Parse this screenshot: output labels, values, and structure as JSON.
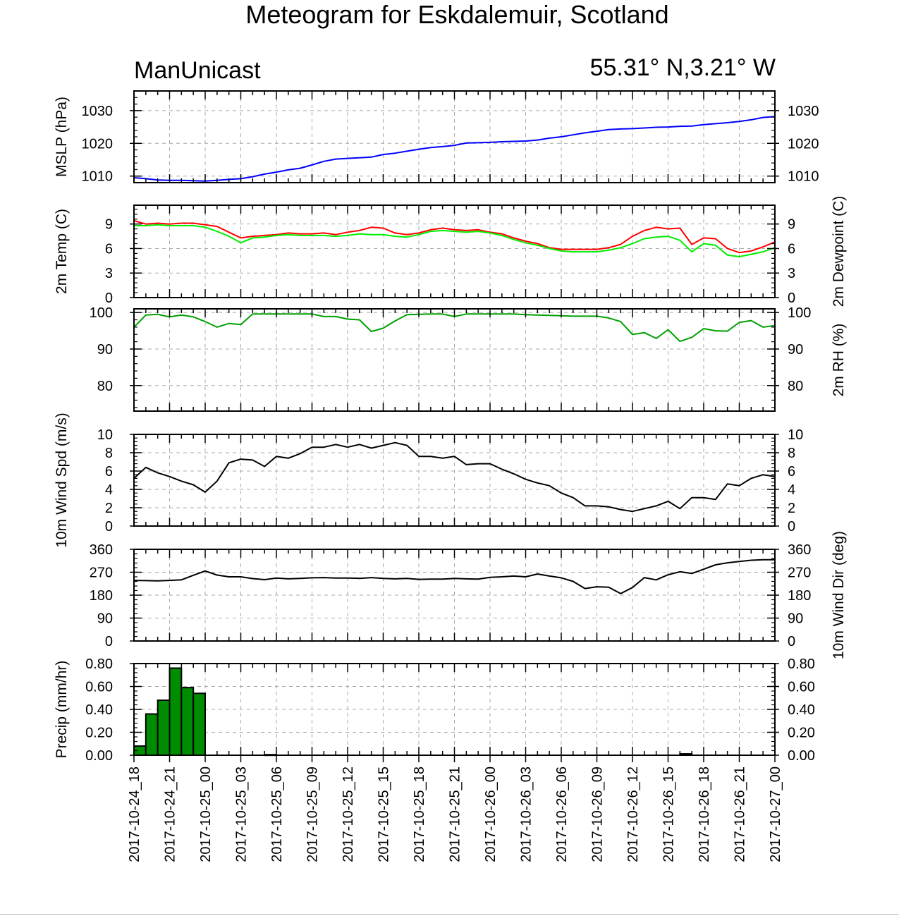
{
  "title": "Meteogram for Eskdalemuir, Scotland",
  "model": "ManUnicast",
  "location": "55.31° N,3.21° W",
  "colors": {
    "mslp": "#0000ff",
    "temp": "#ff0000",
    "dewpoint": "#00ee00",
    "rh": "#00a000",
    "wind": "#000000",
    "precip_fill": "#008c00",
    "grid": "#aaaaaa"
  },
  "chart_data": {
    "type": "line",
    "x_axis": {
      "range": [
        -6,
        48
      ],
      "tick_labels": [
        "2017-10-24_18",
        "2017-10-24_21",
        "2017-10-25_00",
        "2017-10-25_03",
        "2017-10-25_06",
        "2017-10-25_09",
        "2017-10-25_12",
        "2017-10-25_15",
        "2017-10-25_18",
        "2017-10-25_21",
        "2017-10-26_00",
        "2017-10-26_03",
        "2017-10-26_06",
        "2017-10-26_09",
        "2017-10-26_12",
        "2017-10-26_15",
        "2017-10-26_18",
        "2017-10-26_21",
        "2017-10-27_00"
      ],
      "tick_hours": [
        -6,
        -3,
        0,
        3,
        6,
        9,
        12,
        15,
        18,
        21,
        24,
        27,
        30,
        33,
        36,
        39,
        42,
        45,
        48
      ]
    },
    "panels": [
      {
        "id": "mslp",
        "ylabel": "MSLP (hPa)",
        "ylabel_right": "",
        "ylim": [
          1008,
          1036
        ],
        "ticks": [
          1010,
          1020,
          1030
        ],
        "tick_labels": [
          "1010",
          "1020",
          "1030"
        ],
        "series": [
          {
            "color_key": "mslp",
            "x": [
              -6,
              -5,
              -4,
              -3,
              -2,
              -1,
              0,
              1,
              2,
              3,
              4,
              5,
              6,
              7,
              8,
              9,
              10,
              11,
              12,
              13,
              14,
              15,
              16,
              17,
              18,
              19,
              20,
              21,
              22,
              23,
              24,
              25,
              26,
              27,
              28,
              29,
              30,
              31,
              32,
              33,
              34,
              35,
              36,
              37,
              38,
              39,
              40,
              41,
              42,
              43,
              44,
              45,
              46,
              47,
              48
            ],
            "y": [
              1009.5,
              1009.2,
              1008.8,
              1008.7,
              1008.7,
              1008.6,
              1008.5,
              1008.7,
              1009.0,
              1009.2,
              1009.8,
              1010.6,
              1011.2,
              1011.9,
              1012.4,
              1013.4,
              1014.5,
              1015.2,
              1015.4,
              1015.6,
              1015.8,
              1016.6,
              1017.0,
              1017.6,
              1018.2,
              1018.7,
              1019.0,
              1019.4,
              1020.1,
              1020.2,
              1020.3,
              1020.5,
              1020.6,
              1020.7,
              1021.0,
              1021.6,
              1022.0,
              1022.6,
              1023.2,
              1023.7,
              1024.2,
              1024.4,
              1024.5,
              1024.7,
              1024.9,
              1025.0,
              1025.2,
              1025.3,
              1025.7,
              1026.0,
              1026.3,
              1026.7,
              1027.2,
              1027.9,
              1028.2
            ]
          }
        ]
      },
      {
        "id": "temp",
        "ylabel": "2m Temp (C)",
        "ylabel_right": "2m Dewpoint (C)",
        "ylim": [
          0,
          11.3
        ],
        "ticks": [
          0,
          3,
          6,
          9
        ],
        "tick_labels": [
          "0",
          "3",
          "6",
          "9"
        ],
        "series": [
          {
            "color_key": "temp",
            "x": [
              -6,
              -5,
              -4,
              -3,
              -2,
              -1,
              0,
              1,
              2,
              3,
              4,
              5,
              6,
              7,
              8,
              9,
              10,
              11,
              12,
              13,
              14,
              15,
              16,
              17,
              18,
              19,
              20,
              21,
              22,
              23,
              24,
              25,
              26,
              27,
              28,
              29,
              30,
              31,
              32,
              33,
              34,
              35,
              36,
              37,
              38,
              39,
              40,
              41,
              42,
              43,
              44,
              45,
              46,
              47,
              48
            ],
            "y": [
              9.4,
              9.0,
              9.1,
              9.0,
              9.1,
              9.1,
              8.9,
              8.7,
              8.0,
              7.3,
              7.5,
              7.6,
              7.7,
              7.9,
              7.8,
              7.8,
              7.9,
              7.7,
              8.0,
              8.2,
              8.6,
              8.5,
              7.9,
              7.7,
              7.9,
              8.3,
              8.5,
              8.3,
              8.2,
              8.3,
              8.0,
              7.8,
              7.3,
              6.9,
              6.6,
              6.1,
              5.9,
              5.9,
              5.9,
              5.9,
              6.1,
              6.5,
              7.5,
              8.2,
              8.6,
              8.4,
              8.5,
              6.5,
              7.3,
              7.2,
              6.0,
              5.5,
              5.7,
              6.2,
              6.8
            ]
          },
          {
            "color_key": "dewpoint",
            "x": [
              -6,
              -5,
              -4,
              -3,
              -2,
              -1,
              0,
              1,
              2,
              3,
              4,
              5,
              6,
              7,
              8,
              9,
              10,
              11,
              12,
              13,
              14,
              15,
              16,
              17,
              18,
              19,
              20,
              21,
              22,
              23,
              24,
              25,
              26,
              27,
              28,
              29,
              30,
              31,
              32,
              33,
              34,
              35,
              36,
              37,
              38,
              39,
              40,
              41,
              42,
              43,
              44,
              45,
              46,
              47,
              48
            ],
            "y": [
              8.8,
              8.8,
              8.9,
              8.8,
              8.8,
              8.8,
              8.6,
              8.1,
              7.5,
              6.7,
              7.3,
              7.4,
              7.6,
              7.7,
              7.6,
              7.6,
              7.6,
              7.5,
              7.6,
              7.8,
              7.7,
              7.7,
              7.5,
              7.4,
              7.7,
              8.1,
              8.2,
              8.1,
              8.0,
              8.1,
              7.9,
              7.6,
              7.1,
              6.7,
              6.4,
              6.0,
              5.7,
              5.6,
              5.6,
              5.6,
              5.8,
              6.1,
              6.6,
              7.2,
              7.4,
              7.5,
              7.0,
              5.6,
              6.6,
              6.4,
              5.2,
              5.0,
              5.3,
              5.6,
              6.1
            ]
          }
        ]
      },
      {
        "id": "rh",
        "ylabel": "",
        "ylabel_right": "2m RH (%)",
        "ylim": [
          73,
          101
        ],
        "ticks": [
          80,
          90,
          100
        ],
        "tick_labels": [
          "80",
          "90",
          "100"
        ],
        "series": [
          {
            "color_key": "rh",
            "x": [
              -6,
              -5,
              -4,
              -3,
              -2,
              -1,
              0,
              1,
              2,
              3,
              4,
              5,
              6,
              7,
              8,
              9,
              10,
              11,
              12,
              13,
              14,
              15,
              16,
              17,
              18,
              19,
              20,
              21,
              22,
              23,
              24,
              25,
              26,
              27,
              28,
              29,
              30,
              31,
              32,
              33,
              34,
              35,
              36,
              37,
              38,
              39,
              40,
              41,
              42,
              43,
              44,
              45,
              46,
              47,
              48
            ],
            "y": [
              96,
              99.3,
              99.5,
              98.8,
              99.3,
              98.8,
              97.5,
              96.0,
              97.0,
              96.7,
              99.6,
              99.6,
              99.6,
              99.6,
              99.6,
              99.6,
              98.9,
              98.9,
              98.2,
              98.0,
              94.8,
              95.7,
              97.7,
              99.4,
              99.5,
              99.6,
              99.6,
              98.9,
              99.6,
              99.6,
              99.6,
              99.6,
              99.6,
              99.4,
              99.3,
              99.2,
              99.1,
              99.0,
              99.0,
              99.0,
              98.5,
              97.5,
              94.0,
              94.5,
              92.9,
              95.3,
              92.1,
              93.2,
              95.6,
              95.0,
              94.9,
              97.3,
              97.8,
              96.0,
              96.4
            ]
          }
        ]
      },
      {
        "id": "wind_spd",
        "ylabel": "10m Wind Spd (m/s)",
        "ylabel_right": "",
        "ylim": [
          0,
          10
        ],
        "ticks": [
          0,
          2,
          4,
          6,
          8,
          10
        ],
        "tick_labels": [
          "0",
          "2",
          "4",
          "6",
          "8",
          "10"
        ],
        "series": [
          {
            "color_key": "wind",
            "x": [
              -6,
              -5,
              -4,
              -3,
              -2,
              -1,
              0,
              1,
              2,
              3,
              4,
              5,
              6,
              7,
              8,
              9,
              10,
              11,
              12,
              13,
              14,
              15,
              16,
              17,
              18,
              19,
              20,
              21,
              22,
              23,
              24,
              25,
              26,
              27,
              28,
              29,
              30,
              31,
              32,
              33,
              34,
              35,
              36,
              37,
              38,
              39,
              40,
              41,
              42,
              43,
              44,
              45,
              46,
              47,
              48
            ],
            "y": [
              5.2,
              6.4,
              5.8,
              5.4,
              4.9,
              4.5,
              3.7,
              4.9,
              6.9,
              7.3,
              7.2,
              6.5,
              7.6,
              7.4,
              7.9,
              8.6,
              8.6,
              8.9,
              8.6,
              8.9,
              8.5,
              8.8,
              9.1,
              8.8,
              7.6,
              7.6,
              7.4,
              7.6,
              6.7,
              6.8,
              6.8,
              6.2,
              5.7,
              5.1,
              4.7,
              4.4,
              3.6,
              3.1,
              2.2,
              2.2,
              2.1,
              1.8,
              1.6,
              1.9,
              2.2,
              2.7,
              1.9,
              3.1,
              3.1,
              2.9,
              4.6,
              4.4,
              5.2,
              5.6,
              5.4
            ]
          }
        ]
      },
      {
        "id": "wind_dir",
        "ylabel": "",
        "ylabel_right": "10m Wind Dir (deg)",
        "ylim": [
          0,
          360
        ],
        "ticks": [
          0,
          90,
          180,
          270,
          360
        ],
        "tick_labels": [
          "0",
          "90",
          "180",
          "270",
          "360"
        ],
        "series": [
          {
            "color_key": "wind",
            "x": [
              -6,
              -5,
              -4,
              -3,
              -2,
              -1,
              0,
              1,
              2,
              3,
              4,
              5,
              6,
              7,
              8,
              9,
              10,
              11,
              12,
              13,
              14,
              15,
              16,
              17,
              18,
              19,
              20,
              21,
              22,
              23,
              24,
              25,
              26,
              27,
              28,
              29,
              30,
              31,
              32,
              33,
              34,
              35,
              36,
              37,
              38,
              39,
              40,
              41,
              42,
              43,
              44,
              45,
              46,
              47,
              48
            ],
            "y": [
              238,
              237,
              236,
              238,
              240,
              258,
              275,
              259,
              252,
              252,
              245,
              241,
              247,
              244,
              246,
              248,
              249,
              247,
              247,
              246,
              249,
              246,
              244,
              246,
              242,
              243,
              243,
              246,
              244,
              243,
              250,
              252,
              255,
              252,
              263,
              255,
              248,
              234,
              206,
              213,
              211,
              186,
              210,
              249,
              240,
              260,
              272,
              265,
              282,
              299,
              307,
              312,
              317,
              319,
              319
            ]
          }
        ]
      },
      {
        "id": "precip",
        "type": "bar",
        "ylabel": "Precip (mm/hr)",
        "ylabel_right": "",
        "ylim": [
          0,
          0.8
        ],
        "ticks": [
          0,
          0.2,
          0.4,
          0.6,
          0.8
        ],
        "tick_labels": [
          "0.00",
          "0.20",
          "0.40",
          "0.60",
          "0.80"
        ],
        "bars": {
          "x": [
            -5,
            -4,
            -3,
            -2,
            -1,
            0,
            6,
            41
          ],
          "y": [
            0.08,
            0.36,
            0.48,
            0.76,
            0.59,
            0.54,
            0.005,
            0.012
          ]
        }
      }
    ]
  }
}
